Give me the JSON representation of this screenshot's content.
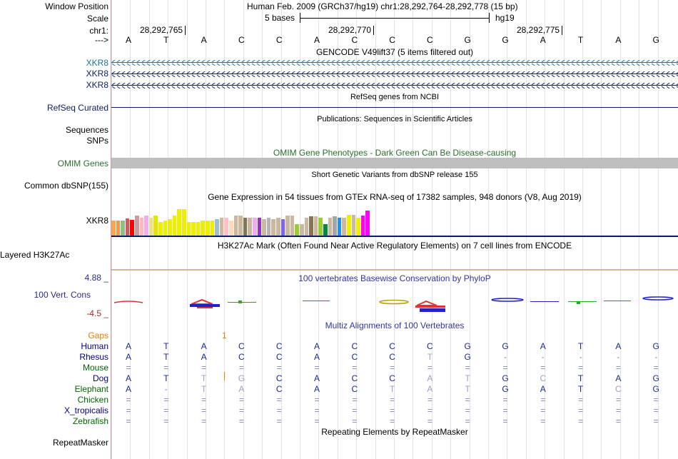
{
  "header": {
    "window_position_label": "Window Position",
    "scale_label": "Scale",
    "chr_label": "chr1:",
    "arrow_label": "--->",
    "assembly_title": "Human Feb. 2009 (GRCh37/hg19)   chr1:28,292,764-28,292,778 (15 bp)",
    "scale_text": "5 bases",
    "scale_db": "hg19",
    "positions": [
      "28,292,765",
      "28,292,770",
      "28,292,775"
    ]
  },
  "bases": [
    "A",
    "T",
    "A",
    "C",
    "C",
    "A",
    "C",
    "C",
    "C",
    "G",
    "G",
    "A",
    "T",
    "A",
    "G"
  ],
  "tracks": {
    "gencode_title": "GENCODE V49lift37 (5 items filtered out)",
    "gencode_rows": [
      "XKR8",
      "XKR8",
      "XKR8"
    ],
    "refseq_title": "RefSeq genes from NCBI",
    "refseq_label": "RefSeq Curated",
    "pubs_title": "Publications: Sequences in Scientific Articles",
    "pubs_labels": [
      "Sequences",
      "SNPs"
    ],
    "omim_title": "OMIM Gene Phenotypes - Dark Green Can Be Disease-causing",
    "omim_label": "OMIM Genes",
    "dbsnp_title": "Short Genetic Variants from dbSNP release 155",
    "dbsnp_label": "Common dbSNP(155)",
    "gtex_title": "Gene Expression in 54 tissues from GTEx RNA-seq of 17382 samples, 948 donors (V8, Aug 2019)",
    "gtex_label": "XKR8",
    "h3k_title": "H3K27Ac Mark (Often Found Near Active Regulatory Elements) on 7 cell lines from ENCODE",
    "h3k_label": "Layered H3K27Ac",
    "cons_title": "100 vertebrates Basewise Conservation by PhyloP",
    "cons_label": "100 Vert. Cons",
    "cons_max": "4.88 _",
    "cons_min": "-4.5 _",
    "multiz_title": "Multiz Alignments of 100 Vertebrates",
    "gaps_label": "Gaps",
    "gaps_mark": "1",
    "repeat_title": "Repeating Elements by RepeatMasker",
    "repeat_label": "RepeatMasker"
  },
  "gtex_values": [
    0.45,
    0.45,
    0.45,
    0.52,
    0.48,
    0.6,
    0.55,
    0.6,
    0.55,
    0.6,
    0.42,
    0.45,
    0.5,
    0.6,
    0.8,
    0.8,
    0.42,
    0.42,
    0.42,
    0.45,
    0.45,
    0.45,
    0.5,
    0.55,
    0.55,
    0.45,
    0.6,
    0.6,
    0.55,
    0.55,
    0.55,
    0.55,
    0.5,
    0.55,
    0.5,
    0.55,
    0.5,
    0.6,
    0.6,
    0.35,
    0.35,
    0.55,
    0.58,
    0.58,
    0.55,
    0.35,
    0.55,
    0.58,
    0.55,
    0.55,
    0.62,
    0.62,
    0.55,
    0.6,
    0.75
  ],
  "gtex_colors": [
    "#ffa54f",
    "#ee9a49",
    "#8fbc8f",
    "#cd5c5c",
    "#ff0000",
    "#cd9b9b",
    "#ffb6c1",
    "#eeaeee",
    "#eedd82",
    "#e5e500",
    "#eeee00",
    "#eeee00",
    "#eeee00",
    "#eeee00",
    "#eeee00",
    "#eeee00",
    "#eeee00",
    "#eeee00",
    "#eeee00",
    "#eeee00",
    "#eeee00",
    "#eeee00",
    "#9ac0cd",
    "#cdb79e",
    "#ffc0cb",
    "#ffdab9",
    "#cdb79e",
    "#cdb79e",
    "#8b7355",
    "#cdb79e",
    "#eeaeee",
    "#9932cc",
    "#cdb79e",
    "#b4b4b4",
    "#cdb79e",
    "#cdb79e",
    "#7a67ee",
    "#cdb79e",
    "#cdb79e",
    "#9acd32",
    "#cdb79e",
    "#cdb79e",
    "#8b7355",
    "#cdb79e",
    "#9acd32",
    "#008b45",
    "#cdb79e",
    "#a6a6a6",
    "#1e90ff",
    "#cdb79e",
    "#eeee00",
    "#cdb79e",
    "#eeee00",
    "#ff00ff",
    "#ff00ff"
  ],
  "alignment": {
    "species": [
      {
        "name": "Human",
        "color": "#000080",
        "seq": [
          "A",
          "T",
          "A",
          "C",
          "C",
          "A",
          "C",
          "C",
          "C",
          "G",
          "G",
          "A",
          "T",
          "A",
          "G"
        ]
      },
      {
        "name": "Rhesus",
        "color": "#000080",
        "seq": [
          "A",
          "T",
          "A",
          "C",
          "C",
          "A",
          "C",
          "C",
          "T",
          "G",
          "-",
          "-",
          "-",
          "-",
          "-"
        ]
      },
      {
        "name": "Mouse",
        "color": "#006400",
        "seq": [
          "=",
          "=",
          "=",
          "=",
          "=",
          "=",
          "=",
          "=",
          "=",
          "=",
          "=",
          "=",
          "=",
          "=",
          "="
        ]
      },
      {
        "name": "Dog",
        "color": "#000080",
        "seq": [
          "A",
          "T",
          "T",
          "G",
          "C",
          "A",
          "C",
          "C",
          "A",
          "T",
          "G",
          "C",
          "T",
          "A",
          "G"
        ]
      },
      {
        "name": "Elephant",
        "color": "#006400",
        "seq": [
          "A",
          "-",
          "T",
          "A",
          "C",
          "A",
          "C",
          "T",
          "A",
          "T",
          "G",
          "A",
          "T",
          "C",
          "G"
        ]
      },
      {
        "name": "Chicken",
        "color": "#006400",
        "seq": [
          "=",
          "=",
          "=",
          "=",
          "=",
          "=",
          "=",
          "=",
          "=",
          "=",
          "=",
          "=",
          "=",
          "=",
          "="
        ]
      },
      {
        "name": "X_tropicalis",
        "color": "#000080",
        "seq": [
          "=",
          "=",
          "=",
          "=",
          "=",
          "=",
          "=",
          "=",
          "=",
          "=",
          "=",
          "=",
          "=",
          "=",
          "="
        ]
      },
      {
        "name": "Zebrafish",
        "color": "#006400",
        "seq": [
          "=",
          "=",
          "=",
          "=",
          "=",
          "=",
          "=",
          "=",
          "=",
          "=",
          "=",
          "=",
          "=",
          "=",
          "="
        ]
      }
    ]
  },
  "colors": {
    "gencode_blue": "#1e6f9f",
    "navy": "#0a1d6b",
    "omim_green": "#2c6e2c",
    "gaps_orange": "#e08000",
    "cons_blue": "#3434a0",
    "cons_label": "#2c2c8a",
    "grid": "#e2e2ea"
  }
}
